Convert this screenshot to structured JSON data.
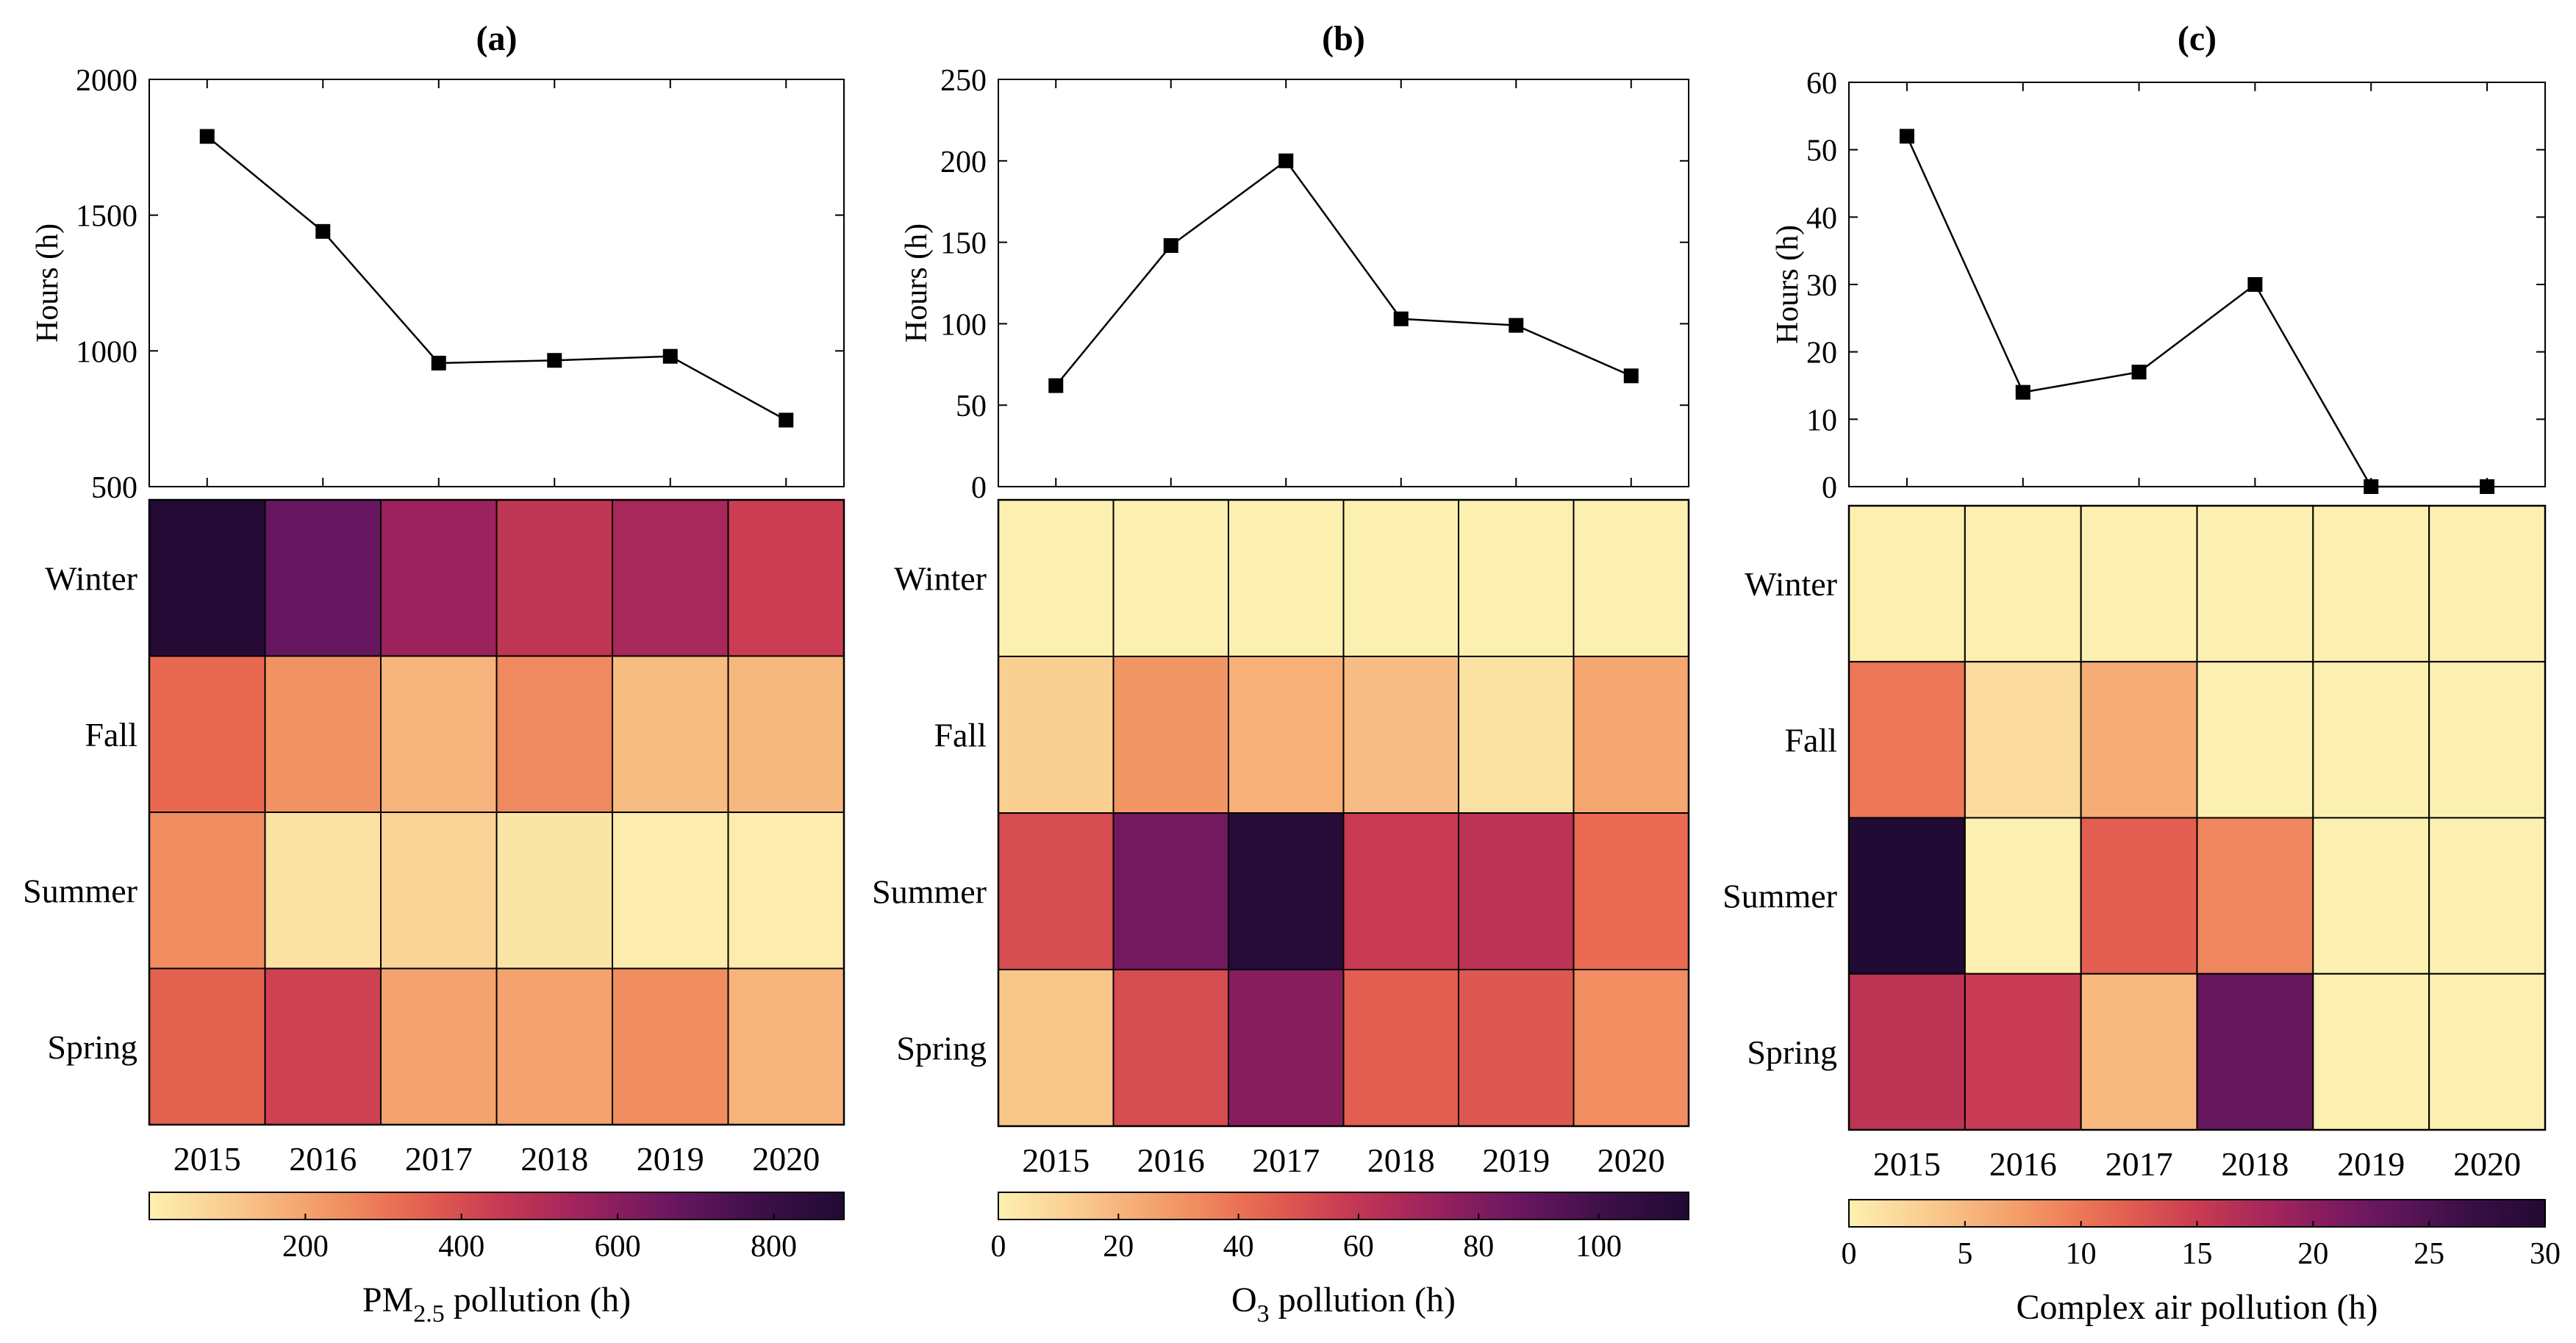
{
  "chart_data": [
    {
      "panel": "(a)",
      "type": "line",
      "x": [
        2015,
        2016,
        2017,
        2018,
        2019,
        2020
      ],
      "values": [
        1790,
        1440,
        955,
        965,
        980,
        745
      ],
      "ylabel": "Hours (h)",
      "ylim": [
        500,
        2000
      ],
      "yticks": [
        500,
        1000,
        1500,
        2000
      ],
      "heatmap": {
        "type": "heatmap",
        "rows": [
          "Winter",
          "Fall",
          "Summer",
          "Spring"
        ],
        "columns": [
          "2015",
          "2016",
          "2017",
          "2018",
          "2019",
          "2020"
        ],
        "values": [
          [
            880,
            680,
            560,
            470,
            530,
            440
          ],
          [
            330,
            240,
            160,
            260,
            140,
            150
          ],
          [
            250,
            40,
            80,
            30,
            10,
            10
          ],
          [
            350,
            430,
            200,
            200,
            250,
            160
          ]
        ],
        "colorbar": {
          "range": [
            0,
            890
          ],
          "ticks": [
            200,
            400,
            600,
            800
          ],
          "label_main": "PM",
          "label_sub": "2.5",
          "label_rest": " pollution (h)"
        }
      }
    },
    {
      "panel": "(b)",
      "type": "line",
      "x": [
        2015,
        2016,
        2017,
        2018,
        2019,
        2020
      ],
      "values": [
        62,
        148,
        200,
        103,
        99,
        68
      ],
      "ylabel": "Hours (h)",
      "ylim": [
        0,
        250
      ],
      "yticks": [
        0,
        50,
        100,
        150,
        200,
        250
      ],
      "heatmap": {
        "type": "heatmap",
        "rows": [
          "Winter",
          "Fall",
          "Summer",
          "Spring"
        ],
        "columns": [
          "2015",
          "2016",
          "2017",
          "2018",
          "2019",
          "2020"
        ],
        "values": [
          [
            0,
            0,
            0,
            0,
            0,
            0
          ],
          [
            12,
            30,
            22,
            18,
            5,
            25
          ],
          [
            52,
            84,
            112,
            58,
            62,
            42
          ],
          [
            15,
            52,
            78,
            46,
            48,
            32
          ]
        ],
        "colorbar": {
          "range": [
            0,
            115
          ],
          "ticks": [
            0,
            20,
            40,
            60,
            80,
            100
          ],
          "label_main": "O",
          "label_sub": "3",
          "label_rest": " pollution (h)"
        }
      }
    },
    {
      "panel": "(c)",
      "type": "line",
      "x": [
        2015,
        2016,
        2017,
        2018,
        2019,
        2020
      ],
      "values": [
        52,
        14,
        17,
        30,
        0,
        0
      ],
      "ylabel": "Hours (h)",
      "ylim": [
        0,
        60
      ],
      "yticks": [
        0,
        10,
        20,
        30,
        40,
        50,
        60
      ],
      "heatmap": {
        "type": "heatmap",
        "rows": [
          "Winter",
          "Fall",
          "Summer",
          "Spring"
        ],
        "columns": [
          "2015",
          "2016",
          "2017",
          "2018",
          "2019",
          "2020"
        ],
        "values": [
          [
            0,
            0,
            0,
            0,
            0,
            0
          ],
          [
            10,
            2,
            6,
            0,
            0,
            0
          ],
          [
            30,
            0,
            12,
            9,
            0,
            0
          ],
          [
            16,
            15,
            5,
            23,
            0,
            0
          ]
        ],
        "colorbar": {
          "range": [
            0,
            30
          ],
          "ticks": [
            0,
            5,
            10,
            15,
            20,
            25,
            30
          ],
          "label_main": "Complex air pollution (h)",
          "label_sub": "",
          "label_rest": ""
        }
      }
    }
  ],
  "colormap": [
    "#fcf0b0",
    "#f9c88c",
    "#f39a67",
    "#e8674f",
    "#c93b52",
    "#9d225d",
    "#6b1760",
    "#3e0f4a",
    "#210a33"
  ]
}
